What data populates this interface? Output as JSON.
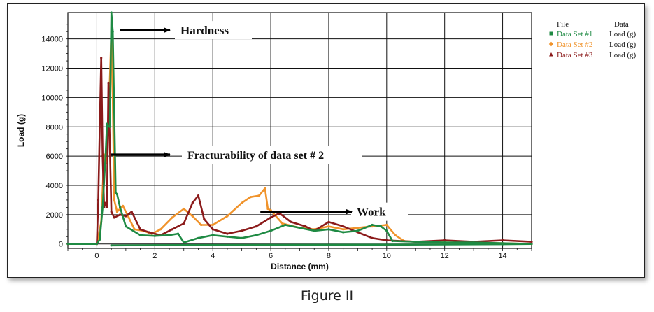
{
  "caption": "Figure II",
  "chart_data": {
    "type": "line",
    "title": "",
    "xlabel": "Distance (mm)",
    "ylabel": "Load (g)",
    "xlim": [
      -1,
      15
    ],
    "ylim": [
      -300,
      15800
    ],
    "x_ticks": [
      "0",
      "2",
      "4",
      "6",
      "8",
      "10",
      "12",
      "14"
    ],
    "x_tick_values": [
      0,
      2,
      4,
      6,
      8,
      10,
      12,
      14
    ],
    "y_ticks": [
      "0",
      "2000",
      "4000",
      "6000",
      "8000",
      "10000",
      "12000",
      "14000"
    ],
    "y_tick_values": [
      0,
      2000,
      4000,
      6000,
      8000,
      10000,
      12000,
      14000
    ],
    "grid": true,
    "legend": {
      "position": "right",
      "header_file": "File",
      "header_data": "Data",
      "entries": [
        {
          "name": "Data Set #1",
          "data": "Load (g)",
          "color": "#1e8a43",
          "marker": "square"
        },
        {
          "name": "Data Set #2",
          "data": "Load (g)",
          "color": "#f0932b",
          "marker": "diamond"
        },
        {
          "name": "Data Set #3",
          "data": "Load (g)",
          "color": "#8b1a1a",
          "marker": "triangle"
        }
      ]
    },
    "annotations": [
      {
        "text": "Hardness",
        "tip": [
          0.55,
          14600
        ]
      },
      {
        "text": "Fracturability of data set # 2",
        "tip": [
          0.25,
          6100
        ]
      },
      {
        "text": "Work",
        "tip": [
          5.4,
          2200
        ]
      }
    ],
    "series": [
      {
        "name": "Data Set #1",
        "color": "#1e8a43",
        "x": [
          -1,
          0,
          0.1,
          0.2,
          0.3,
          0.35,
          0.45,
          0.5,
          0.55,
          0.6,
          0.65,
          0.7,
          0.8,
          1.0,
          1.5,
          2.0,
          2.5,
          2.8,
          3.0,
          3.5,
          4.0,
          4.5,
          5.0,
          5.5,
          6.0,
          6.5,
          7.0,
          7.5,
          8.0,
          8.5,
          9.0,
          9.5,
          9.8,
          10.0,
          10.2,
          11,
          12,
          13,
          14,
          15,
          14,
          10,
          6,
          2,
          0.5
        ],
        "y": [
          0,
          0,
          300,
          2500,
          6000,
          8200,
          8000,
          15800,
          14500,
          9000,
          3500,
          3400,
          2500,
          1200,
          600,
          550,
          600,
          700,
          100,
          400,
          600,
          500,
          400,
          600,
          900,
          1300,
          1100,
          900,
          1000,
          800,
          900,
          1300,
          1200,
          900,
          200,
          150,
          100,
          100,
          50,
          0,
          -20,
          -50,
          -60,
          -80,
          -100
        ]
      },
      {
        "name": "Data Set #2",
        "color": "#f0932b",
        "x": [
          -1,
          0,
          0.15,
          0.25,
          0.3,
          0.4,
          0.5,
          0.55,
          0.6,
          0.7,
          0.9,
          1.1,
          1.3,
          1.6,
          1.9,
          2.2,
          2.6,
          3.0,
          3.3,
          3.6,
          4.0,
          4.5,
          5.0,
          5.3,
          5.6,
          5.8,
          5.9,
          6.0,
          6.4,
          7.0,
          7.5,
          8.0,
          8.5,
          9.0,
          9.5,
          10.0,
          10.3,
          10.6,
          11,
          12,
          13,
          14,
          15
        ],
        "y": [
          0,
          0,
          1500,
          6100,
          5500,
          8300,
          14500,
          10000,
          3000,
          2200,
          2600,
          1800,
          1000,
          900,
          700,
          1000,
          1800,
          2400,
          1900,
          1300,
          1300,
          1900,
          2800,
          3200,
          3300,
          3800,
          2400,
          2300,
          1400,
          1100,
          1000,
          1200,
          1000,
          1100,
          1200,
          1300,
          600,
          200,
          150,
          100,
          80,
          50,
          0
        ]
      },
      {
        "name": "Data Set #3",
        "color": "#8b1a1a",
        "x": [
          -1,
          0,
          0.05,
          0.1,
          0.15,
          0.2,
          0.25,
          0.3,
          0.35,
          0.4,
          0.5,
          0.6,
          0.8,
          1.0,
          1.2,
          1.5,
          1.8,
          2.2,
          2.6,
          3.0,
          3.3,
          3.5,
          3.7,
          4.0,
          4.5,
          5.0,
          5.5,
          6.0,
          6.3,
          6.7,
          7.2,
          7.5,
          8.0,
          8.5,
          9.0,
          9.5,
          10.0,
          11,
          12,
          13,
          14,
          15
        ],
        "y": [
          0,
          0,
          3000,
          8000,
          12700,
          6000,
          2500,
          2800,
          2500,
          11000,
          2200,
          1800,
          2000,
          1900,
          2200,
          1000,
          800,
          600,
          1000,
          1400,
          2800,
          3300,
          1700,
          1000,
          700,
          900,
          1200,
          1800,
          2100,
          1500,
          1200,
          900,
          1500,
          1200,
          800,
          400,
          250,
          150,
          250,
          150,
          250,
          150
        ]
      }
    ]
  }
}
